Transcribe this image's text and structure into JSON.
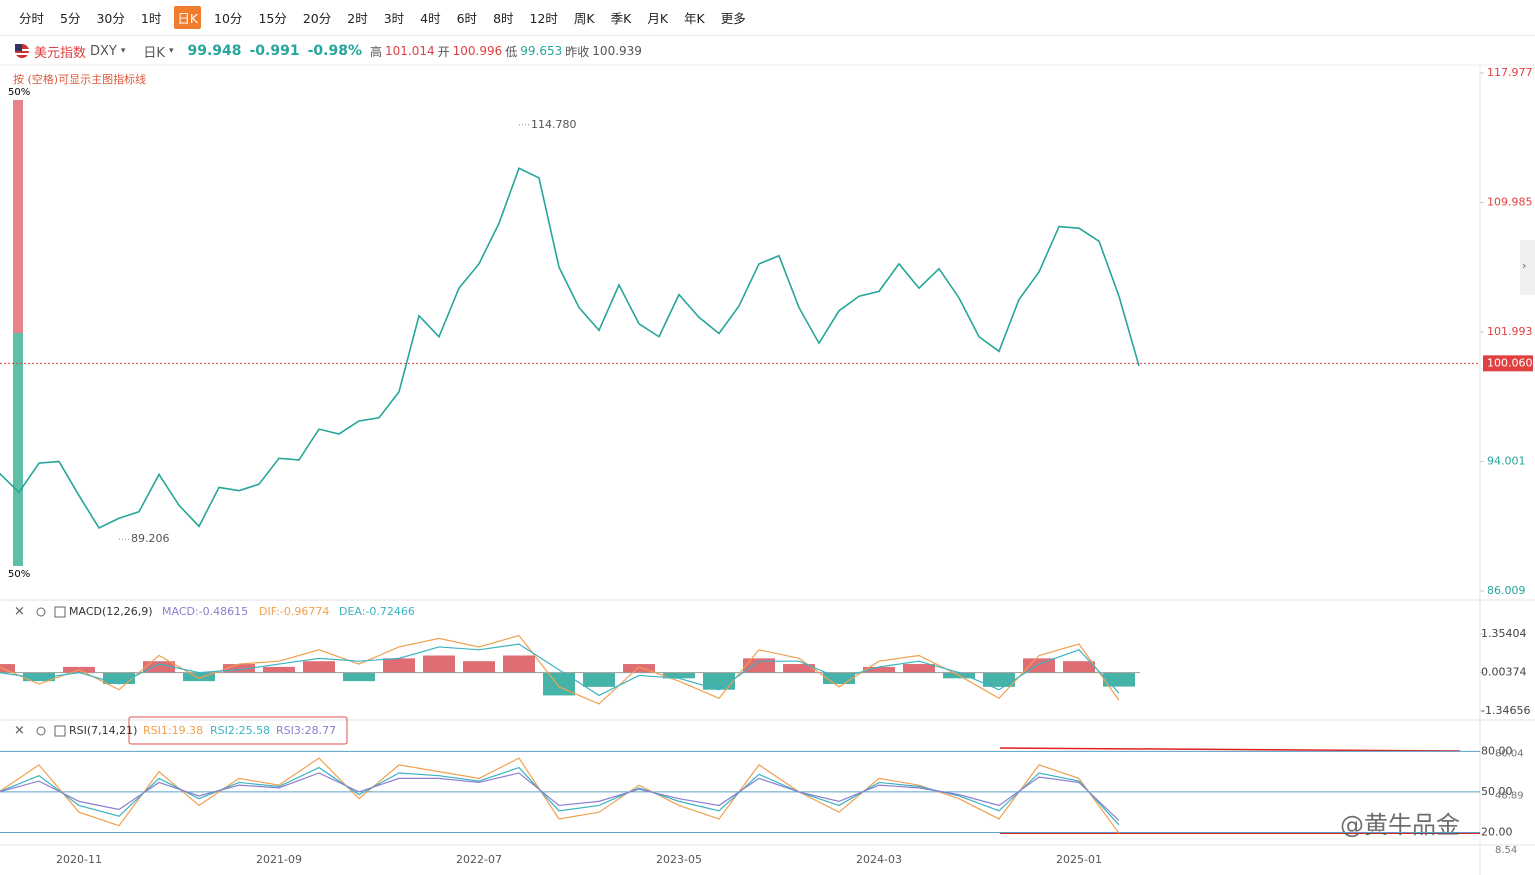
{
  "toolbar": {
    "items": [
      "分时",
      "5分",
      "30分",
      "1时",
      "日K",
      "10分",
      "15分",
      "20分",
      "2时",
      "3时",
      "4时",
      "6时",
      "8时",
      "12时",
      "周K",
      "季K",
      "月K",
      "年K",
      "更多"
    ],
    "active": 4
  },
  "header": {
    "name": "美元指数",
    "symbol": "DXY",
    "period": "日K",
    "price": "99.948",
    "change": "-0.991",
    "change_pct": "-0.98%",
    "high_label": "高",
    "high": "101.014",
    "open_label": "开",
    "open": "100.996",
    "low_label": "低",
    "low": "99.653",
    "prev_label": "昨收",
    "prev": "100.939"
  },
  "hint": "按 (空格)可显示主图指标线",
  "gauge": {
    "top": "50%",
    "bottom": "50%"
  },
  "watermark": "@黄牛品金",
  "chart_data": [
    {
      "type": "line",
      "color": "#26a69a",
      "x": [
        "2020-07",
        "2020-08",
        "2020-09",
        "2020-10",
        "2020-11",
        "2020-12",
        "2021-01",
        "2021-02",
        "2021-03",
        "2021-04",
        "2021-05",
        "2021-06",
        "2021-07",
        "2021-08",
        "2021-09",
        "2021-10",
        "2021-11",
        "2021-12",
        "2022-01",
        "2022-02",
        "2022-03",
        "2022-04",
        "2022-05",
        "2022-06",
        "2022-07",
        "2022-08",
        "2022-09",
        "2022-10",
        "2022-11",
        "2022-12",
        "2023-01",
        "2023-02",
        "2023-03",
        "2023-04",
        "2023-05",
        "2023-06",
        "2023-07",
        "2023-08",
        "2023-09",
        "2023-10",
        "2023-11",
        "2023-12",
        "2024-01",
        "2024-02",
        "2024-03",
        "2024-04",
        "2024-05",
        "2024-06",
        "2024-07",
        "2024-08",
        "2024-09",
        "2024-10",
        "2024-11",
        "2024-12",
        "2025-01",
        "2025-02",
        "2025-03",
        "2025-04"
      ],
      "values": [
        93.3,
        92.1,
        93.9,
        94.0,
        91.9,
        89.9,
        90.5,
        90.9,
        93.2,
        91.3,
        90.0,
        92.4,
        92.2,
        92.6,
        94.2,
        94.1,
        96.0,
        95.7,
        96.5,
        96.7,
        98.3,
        103.0,
        101.7,
        104.7,
        106.2,
        108.7,
        112.1,
        111.5,
        106.0,
        103.5,
        102.1,
        104.9,
        102.5,
        101.7,
        104.3,
        102.9,
        101.9,
        103.6,
        106.2,
        106.7,
        103.5,
        101.3,
        103.3,
        104.2,
        104.5,
        106.2,
        104.7,
        105.9,
        104.1,
        101.7,
        100.8,
        104.0,
        105.7,
        108.5,
        108.4,
        107.6,
        104.2,
        99.9
      ],
      "ylim": [
        86.009,
        117.977
      ],
      "yticks": [
        117.977,
        109.985,
        101.993,
        94.001,
        86.009
      ],
      "xticks": [
        "2020-11",
        "2021-09",
        "2022-07",
        "2023-05",
        "2024-03",
        "2025-01"
      ],
      "current": {
        "value": 100.06,
        "label": "100.060"
      },
      "annotations": [
        {
          "x": "2022-09",
          "value": 114.78,
          "label": "114.780"
        },
        {
          "x": "2021-01",
          "value": 89.206,
          "label": "89.206"
        }
      ]
    },
    {
      "type": "macd",
      "title": "MACD(12,26,9)",
      "labels": [
        "MACD:-0.48615",
        "DIF:-0.96774",
        "DEA:-0.72466"
      ],
      "x": [
        "2020-07",
        "2020-09",
        "2020-11",
        "2021-01",
        "2021-03",
        "2021-05",
        "2021-07",
        "2021-09",
        "2021-11",
        "2022-01",
        "2022-03",
        "2022-05",
        "2022-07",
        "2022-09",
        "2022-11",
        "2023-01",
        "2023-03",
        "2023-05",
        "2023-07",
        "2023-09",
        "2023-11",
        "2024-01",
        "2024-03",
        "2024-05",
        "2024-07",
        "2024-09",
        "2024-11",
        "2025-01",
        "2025-03"
      ],
      "series": [
        {
          "name": "MACD",
          "color": "#26a69a",
          "values": [
            0.3,
            -0.3,
            0.2,
            -0.4,
            0.4,
            -0.3,
            0.3,
            0.2,
            0.4,
            -0.3,
            0.5,
            0.6,
            0.4,
            0.6,
            -0.8,
            -0.5,
            0.3,
            -0.2,
            -0.6,
            0.5,
            0.3,
            -0.4,
            0.2,
            0.3,
            -0.2,
            -0.5,
            0.5,
            0.4,
            -0.49
          ]
        },
        {
          "name": "DIF",
          "color": "#f0a050",
          "values": [
            0.2,
            -0.4,
            0.1,
            -0.6,
            0.6,
            -0.2,
            0.3,
            0.4,
            0.8,
            0.3,
            0.9,
            1.2,
            0.9,
            1.3,
            -0.5,
            -1.1,
            0.2,
            -0.3,
            -0.9,
            0.8,
            0.5,
            -0.5,
            0.4,
            0.6,
            -0.1,
            -0.9,
            0.6,
            1.0,
            -0.97
          ]
        },
        {
          "name": "DEA",
          "color": "#3bb3c3",
          "values": [
            0.0,
            -0.2,
            0.0,
            -0.4,
            0.3,
            0.0,
            0.1,
            0.3,
            0.5,
            0.4,
            0.5,
            0.9,
            0.8,
            1.0,
            0.1,
            -0.8,
            -0.1,
            -0.2,
            -0.6,
            0.4,
            0.4,
            -0.2,
            0.2,
            0.4,
            0.0,
            -0.6,
            0.3,
            0.8,
            -0.72
          ]
        }
      ],
      "ylim": [
        -1.34656,
        1.35404
      ],
      "yticks": [
        1.35404,
        0.00374,
        -1.34656
      ]
    },
    {
      "type": "rsi",
      "title": "RSI(7,14,21)",
      "labels": [
        "RSI1:19.38",
        "RSI2:25.58",
        "RSI3:28.77"
      ],
      "x": [
        "2020-07",
        "2020-09",
        "2020-11",
        "2021-01",
        "2021-03",
        "2021-05",
        "2021-07",
        "2021-09",
        "2021-11",
        "2022-01",
        "2022-03",
        "2022-05",
        "2022-07",
        "2022-09",
        "2022-11",
        "2023-01",
        "2023-03",
        "2023-05",
        "2023-07",
        "2023-09",
        "2023-11",
        "2024-01",
        "2024-03",
        "2024-05",
        "2024-07",
        "2024-09",
        "2024-11",
        "2025-01",
        "2025-03"
      ],
      "series": [
        {
          "name": "RSI1",
          "color": "#f0a050",
          "values": [
            50,
            70,
            35,
            25,
            65,
            40,
            60,
            55,
            75,
            45,
            70,
            65,
            60,
            75,
            30,
            35,
            55,
            40,
            30,
            70,
            50,
            35,
            60,
            55,
            45,
            30,
            70,
            60,
            19.38
          ]
        },
        {
          "name": "RSI2",
          "color": "#3bb3c3",
          "values": [
            50,
            62,
            40,
            32,
            60,
            45,
            57,
            54,
            68,
            48,
            64,
            62,
            58,
            68,
            36,
            40,
            53,
            43,
            36,
            63,
            50,
            40,
            57,
            54,
            47,
            36,
            64,
            58,
            25.58
          ]
        },
        {
          "name": "RSI3",
          "color": "#8a7fd0",
          "values": [
            50,
            58,
            43,
            37,
            57,
            47,
            55,
            53,
            64,
            50,
            60,
            60,
            57,
            64,
            40,
            43,
            52,
            45,
            40,
            60,
            50,
            43,
            55,
            53,
            48,
            40,
            61,
            57,
            28.77
          ]
        }
      ],
      "ylim": [
        10,
        98
      ],
      "yticks": [
        {
          "value": 80,
          "label": "80.00"
        },
        {
          "value": 50,
          "label": "50.00"
        },
        {
          "value": 20,
          "label": "20.00"
        }
      ],
      "value_tags": [
        {
          "value": 80.04,
          "label": "80.04"
        },
        {
          "value": 48.89,
          "label": "48.89"
        },
        {
          "value": 8.54,
          "label": "8.54"
        }
      ]
    }
  ]
}
